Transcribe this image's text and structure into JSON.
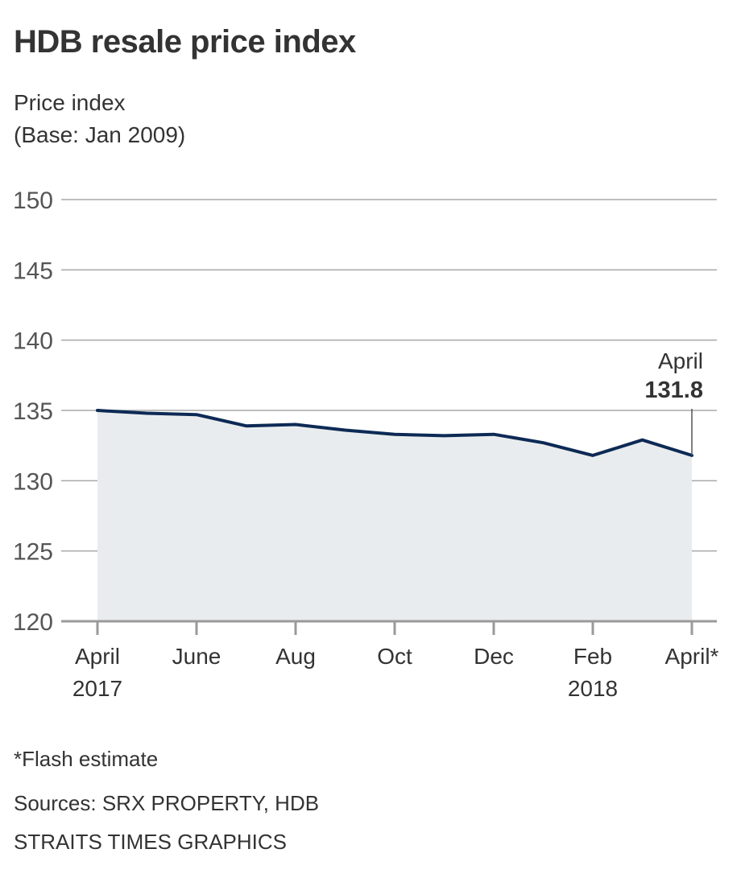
{
  "chart_data": {
    "type": "area",
    "title": "HDB resale price index",
    "ylabel_lines": [
      "Price index",
      "(Base: Jan 2009)"
    ],
    "xlabel": "",
    "ylim": [
      120,
      150
    ],
    "yticks": [
      120,
      125,
      130,
      135,
      140,
      145,
      150
    ],
    "grid": true,
    "x": [
      "Apr 2017",
      "May 2017",
      "Jun 2017",
      "Jul 2017",
      "Aug 2017",
      "Sep 2017",
      "Oct 2017",
      "Nov 2017",
      "Dec 2017",
      "Jan 2018",
      "Feb 2018",
      "Mar 2018",
      "Apr 2018"
    ],
    "series": [
      {
        "name": "HDB resale price index",
        "values": [
          135.0,
          134.8,
          134.7,
          133.9,
          134.0,
          133.6,
          133.3,
          133.2,
          133.3,
          132.7,
          131.8,
          132.9,
          131.8
        ]
      }
    ],
    "xtick_labels": [
      {
        "index": 0,
        "lines": [
          "April",
          "2017"
        ]
      },
      {
        "index": 2,
        "lines": [
          "June"
        ]
      },
      {
        "index": 4,
        "lines": [
          "Aug"
        ]
      },
      {
        "index": 6,
        "lines": [
          "Oct"
        ]
      },
      {
        "index": 8,
        "lines": [
          "Dec"
        ]
      },
      {
        "index": 10,
        "lines": [
          "Feb",
          "2018"
        ]
      },
      {
        "index": 12,
        "lines": [
          "April*"
        ]
      }
    ],
    "annotation": {
      "index": 12,
      "label": "April",
      "value": "131.8"
    },
    "colors": {
      "line": "#0d2a55",
      "fill": "#e9ecee",
      "grid": "#a8a8a8",
      "axis": "#9a9a9a",
      "text": "#333333",
      "tick_text": "#555555"
    }
  },
  "footer": {
    "note": "*Flash estimate",
    "sources": "Sources: SRX PROPERTY, HDB",
    "credit": "STRAITS TIMES GRAPHICS"
  }
}
